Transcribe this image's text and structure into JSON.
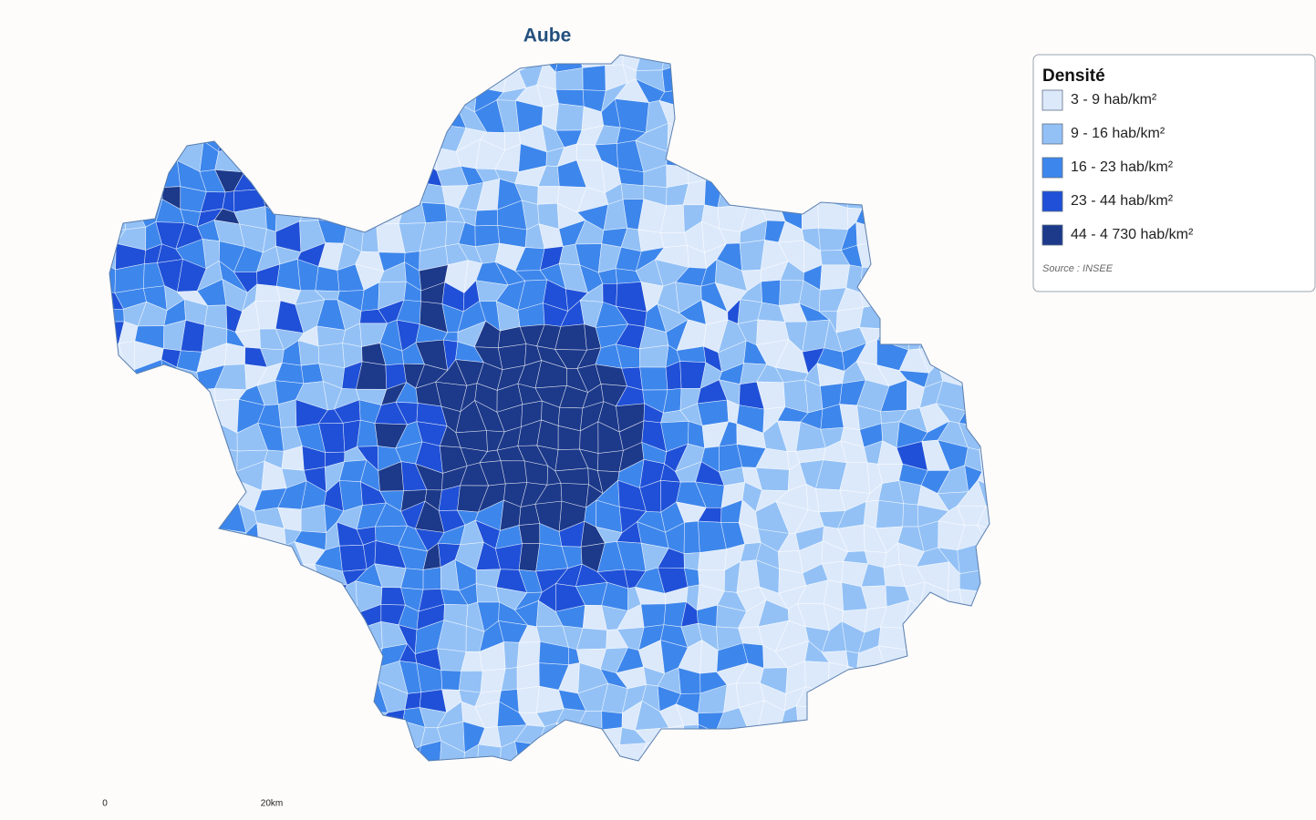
{
  "title": "Aube",
  "legend": {
    "title": "Densité",
    "items": [
      {
        "label": "3 - 9 hab/km²",
        "color": "#dce9fb"
      },
      {
        "label": "9 - 16 hab/km²",
        "color": "#93c1f6"
      },
      {
        "label": "16 - 23 hab/km²",
        "color": "#3d86ec"
      },
      {
        "label": "23 - 44 hab/km²",
        "color": "#1f50d7"
      },
      {
        "label": "44 - 4 730 hab/km²",
        "color": "#1c398a"
      }
    ],
    "source": "Source : INSEE"
  },
  "scale": {
    "labels": [
      "0",
      "20km"
    ]
  }
}
